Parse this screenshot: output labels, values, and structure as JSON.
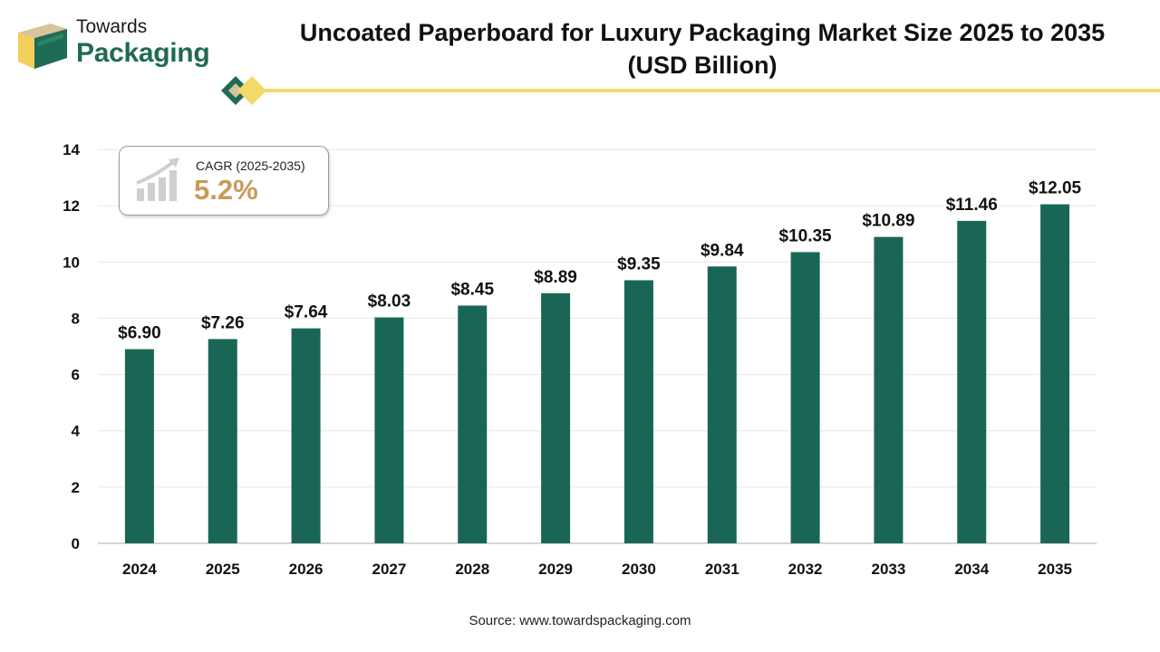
{
  "brand": {
    "line1": "Towards",
    "line2": "Packaging"
  },
  "title_line1": "Uncoated Paperboard for Luxury Packaging Market Size 2025 to 2035",
  "title_line2": "(USD Billion)",
  "cagr": {
    "label": "CAGR (2025-2035)",
    "value": "5.2%"
  },
  "source": "Source: www.towardspackaging.com",
  "colors": {
    "bar": "#1a6656",
    "accent": "#c79a5a",
    "brand_green": "#1f6b55",
    "gold": "#f3da68"
  },
  "chart_data": {
    "type": "bar",
    "categories": [
      "2024",
      "2025",
      "2026",
      "2027",
      "2028",
      "2029",
      "2030",
      "2031",
      "2032",
      "2033",
      "2034",
      "2035"
    ],
    "values": [
      6.9,
      7.26,
      7.64,
      8.03,
      8.45,
      8.89,
      9.35,
      9.84,
      10.35,
      10.89,
      11.46,
      12.05
    ],
    "data_labels": [
      "$6.90",
      "$7.26",
      "$7.64",
      "$8.03",
      "$8.45",
      "$8.89",
      "$9.35",
      "$9.84",
      "$10.35",
      "$10.89",
      "$11.46",
      "$12.05"
    ],
    "ylim": [
      0,
      14
    ],
    "yticks": [
      0,
      2,
      4,
      6,
      8,
      10,
      12,
      14
    ],
    "grid": true,
    "xlabel": "",
    "ylabel": ""
  }
}
